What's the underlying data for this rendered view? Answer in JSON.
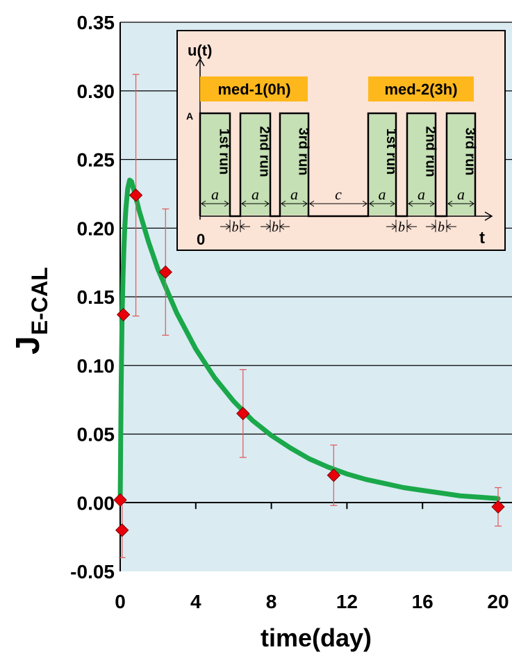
{
  "chart_data": {
    "type": "scatter",
    "xlabel": "time(day)",
    "ylabel": "J",
    "ylabel_subscript": "E-CAL",
    "xlim": [
      0,
      20
    ],
    "ylim": [
      -0.05,
      0.35
    ],
    "x_ticks": [
      0,
      4,
      8,
      12,
      16,
      20
    ],
    "y_ticks": [
      -0.05,
      0.0,
      0.05,
      0.1,
      0.15,
      0.2,
      0.25,
      0.3,
      0.35
    ],
    "x_tick_labels": [
      "0",
      "4",
      "8",
      "12",
      "16",
      "20"
    ],
    "y_tick_labels": [
      "-0.05",
      "0.00",
      "0.05",
      "0.10",
      "0.15",
      "0.20",
      "0.25",
      "0.30",
      "0.35"
    ],
    "grid": "horizontal",
    "plot_background": "#daebf2",
    "series": [
      {
        "kind": "points-with-error-bars",
        "marker": "diamond",
        "color": "#e8000b",
        "error_color": "#e06060",
        "x": [
          0.0,
          0.1,
          0.17,
          0.83,
          2.4,
          6.5,
          11.3,
          20.0
        ],
        "y": [
          0.002,
          -0.02,
          0.137,
          0.224,
          0.168,
          0.065,
          0.02,
          -0.003
        ],
        "y_err": [
          0.0,
          0.02,
          0.0,
          0.088,
          0.046,
          0.032,
          0.022,
          0.014
        ]
      },
      {
        "kind": "fitted-curve",
        "color": "#1aa84a",
        "x": [
          0.0,
          0.05,
          0.1,
          0.15,
          0.2,
          0.25,
          0.3,
          0.4,
          0.5,
          0.6,
          0.7,
          0.8,
          1.0,
          1.5,
          2.0,
          2.5,
          3.0,
          4.0,
          5.0,
          6.0,
          7.0,
          8.0,
          9.0,
          10.0,
          11.0,
          12.0,
          13.0,
          14.0,
          15.0,
          16.0,
          17.0,
          18.0,
          19.0,
          20.0
        ],
        "y": [
          0.0,
          0.085,
          0.135,
          0.165,
          0.186,
          0.202,
          0.214,
          0.229,
          0.235,
          0.234,
          0.229,
          0.224,
          0.213,
          0.19,
          0.17,
          0.154,
          0.138,
          0.112,
          0.091,
          0.074,
          0.06,
          0.049,
          0.04,
          0.032,
          0.026,
          0.021,
          0.017,
          0.014,
          0.011,
          0.009,
          0.007,
          0.005,
          0.004,
          0.003
        ]
      }
    ]
  },
  "inset": {
    "axis_y_label": "u(t)",
    "axis_x_label": "t",
    "origin_label": "0",
    "level_label": "A",
    "group1_label": "med-1(0h)",
    "group2_label": "med-2(3h)",
    "runs": [
      "1st run",
      "2nd run",
      "3rd run",
      "1st run",
      "2nd run",
      "3rd run"
    ],
    "pulse_width_label": "a",
    "gap_label": "b",
    "interval_label": "c",
    "background": "#fbe3d6",
    "banner_color": "#ffb81c",
    "pulse_color": "#c5e0b4"
  }
}
